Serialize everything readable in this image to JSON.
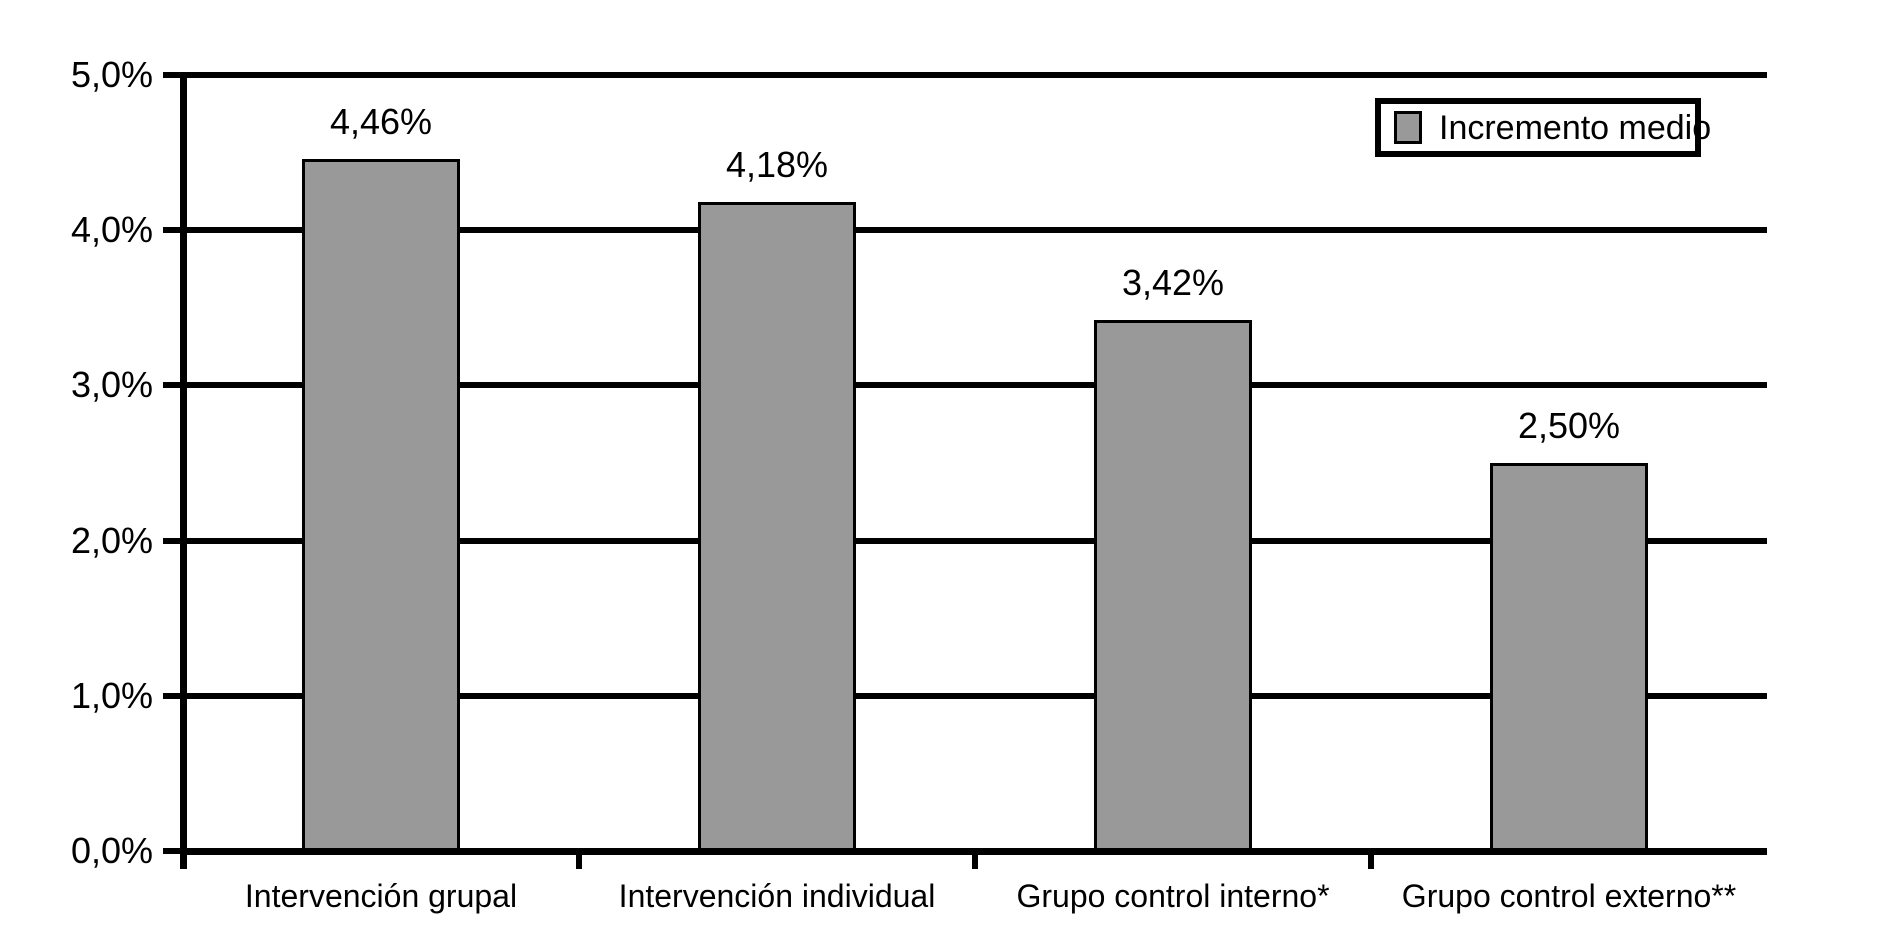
{
  "chart_data": {
    "type": "bar",
    "categories": [
      "Intervención grupal",
      "Intervención individual",
      "Grupo control interno*",
      "Grupo control externo**"
    ],
    "values": [
      4.46,
      4.18,
      3.42,
      2.5
    ],
    "value_labels": [
      "4,46%",
      "4,18%",
      "3,42%",
      "2,50%"
    ],
    "series": [
      {
        "name": "Incremento medio",
        "values": [
          4.46,
          4.18,
          3.42,
          2.5
        ]
      }
    ],
    "title": "",
    "xlabel": "",
    "ylabel": "",
    "ylim": [
      0,
      5
    ],
    "ytick_values": [
      0,
      1,
      2,
      3,
      4,
      5
    ],
    "ytick_labels": [
      "0,0%",
      "1,0%",
      "2,0%",
      "3,0%",
      "4,0%",
      "5,0%"
    ],
    "grid": true,
    "legend_position": "top-right",
    "colors": {
      "bar_fill": "#999999",
      "bar_border": "#000000",
      "line_color": "#000000",
      "text_color": "#000000",
      "background": "#ffffff"
    }
  },
  "legend": {
    "label": "Incremento medio"
  }
}
